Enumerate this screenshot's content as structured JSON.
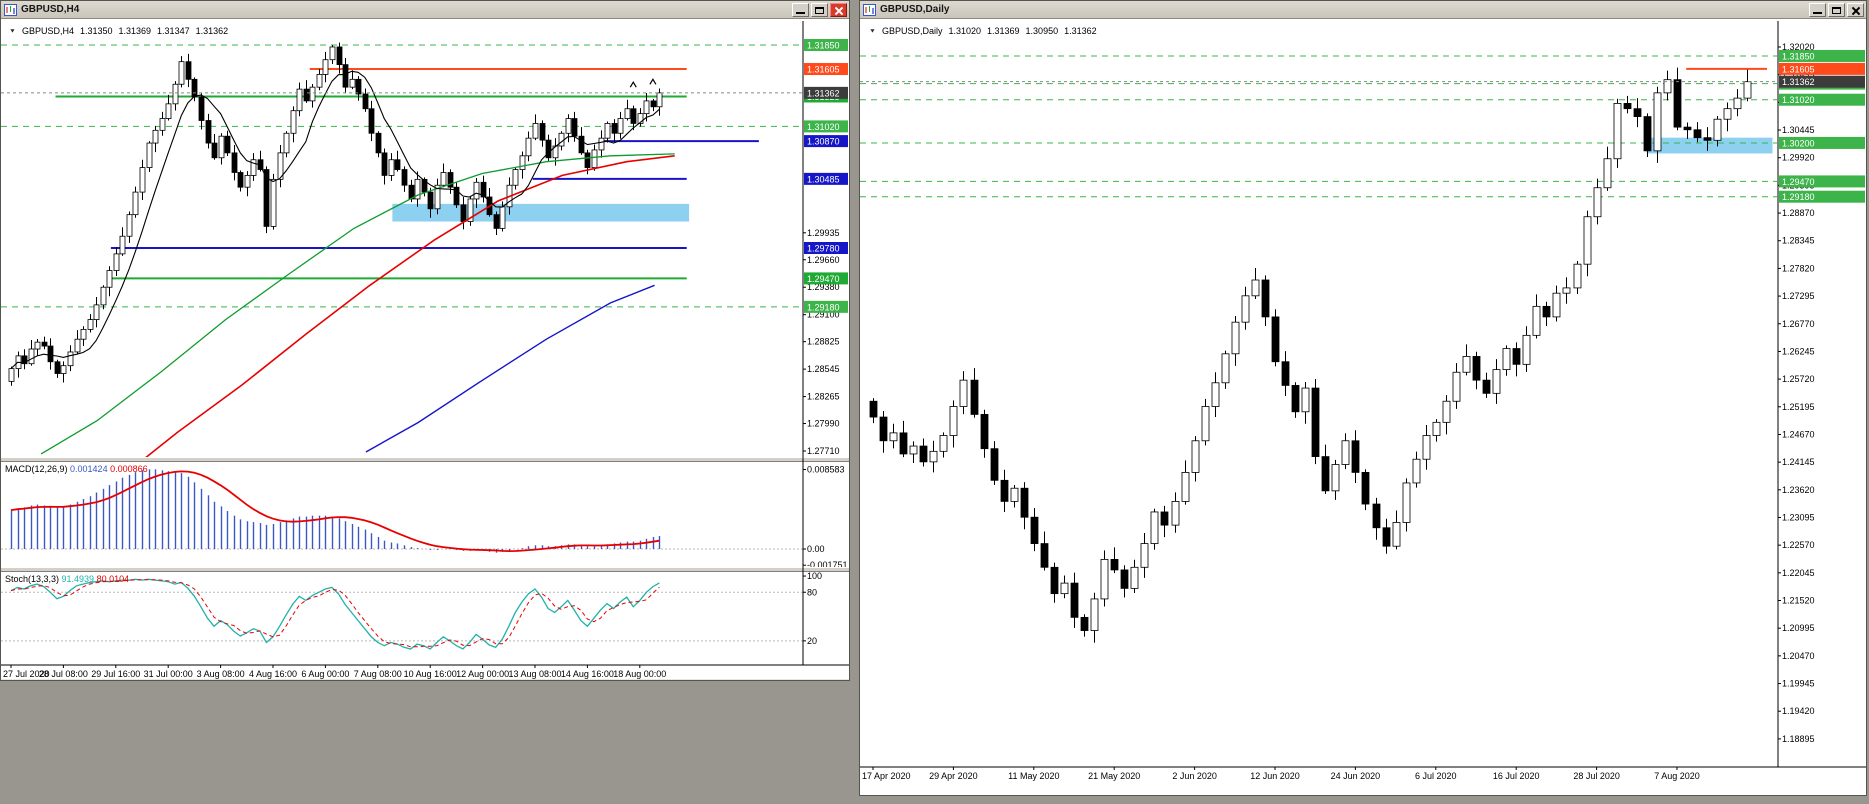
{
  "app": {
    "desktop_bg": "#98968f",
    "titlebar_bg": "#d4d0c8",
    "bull_color": "#ffffff",
    "bear_color": "#000000",
    "accent_green": "#1faa34",
    "accent_green_dashed": "#3cb44a",
    "accent_blue": "#1616c8",
    "accent_orange": "#ff4a1c",
    "zone_blue": "#8dd0f0",
    "current_price_box": "#3c3c3c"
  },
  "windows": {
    "left": {
      "title": "GBPUSD,H4",
      "icon": "candlestick-chart-icon",
      "controls": [
        "minimize-icon",
        "restore-icon",
        "close-icon"
      ],
      "header": {
        "symbol": "GBPUSD,H4",
        "open": "1.31350",
        "high": "1.31369",
        "low": "1.31347",
        "close": "1.31362"
      }
    },
    "right": {
      "title": "GBPUSD,Daily",
      "icon": "candlestick-chart-icon",
      "controls": [
        "minimize-icon",
        "restore-icon",
        "close-icon"
      ],
      "header": {
        "symbol": "GBPUSD,Daily",
        "open": "1.31020",
        "high": "1.31369",
        "low": "1.30950",
        "close": "1.31362"
      }
    }
  },
  "chart_data": [
    {
      "id": "gbpusd-h4",
      "type": "candlestick",
      "title": "GBPUSD,H4",
      "current_price": 1.31362,
      "label_every": 8,
      "y_axis_labels": [
        1.29935,
        1.2966,
        1.2938,
        1.291,
        1.28825,
        1.28545,
        1.28265,
        1.2799,
        1.2771
      ],
      "x_labels": [
        "27 Jul 2020",
        "28 Jul 08:00",
        "29 Jul 16:00",
        "31 Jul 00:00",
        "3 Aug 08:00",
        "4 Aug 16:00",
        "6 Aug 00:00",
        "7 Aug 08:00",
        "10 Aug 16:00",
        "12 Aug 00:00",
        "13 Aug 08:00",
        "14 Aug 16:00",
        "18 Aug 00:00"
      ],
      "levels": [
        {
          "price": 1.3185,
          "color": "#3cb44a",
          "dash": true,
          "x1": 0,
          "x2": 1,
          "w": 1
        },
        {
          "price": 1.31605,
          "color": "#ff4a1c",
          "dash": false,
          "x1": 0.385,
          "x2": 0.855,
          "w": 2
        },
        {
          "price": 1.31325,
          "color": "#1faa34",
          "dash": false,
          "x1": 0.068,
          "x2": 0.855,
          "w": 2
        },
        {
          "price": 1.3102,
          "color": "#3cb44a",
          "dash": true,
          "x1": 0,
          "x2": 1,
          "w": 1
        },
        {
          "price": 1.3087,
          "color": "#1616c8",
          "dash": false,
          "x1": 0.745,
          "x2": 0.945,
          "w": 2
        },
        {
          "price": 1.30485,
          "color": "#1616c8",
          "dash": false,
          "x1": 0.663,
          "x2": 0.855,
          "w": 2
        },
        {
          "price": 1.2978,
          "color": "#1616c8",
          "dash": false,
          "x1": 0.137,
          "x2": 0.855,
          "w": 2
        },
        {
          "price": 1.2947,
          "color": "#1faa34",
          "dash": false,
          "x1": 0.137,
          "x2": 0.855,
          "w": 2
        },
        {
          "price": 1.2918,
          "color": "#3cb44a",
          "dash": true,
          "x1": 0,
          "x2": 1,
          "w": 1
        }
      ],
      "zones": [
        {
          "top": 1.3023,
          "bottom": 1.3005,
          "x1": 0.488,
          "x2": 0.858,
          "color": "#8dd0f0"
        }
      ],
      "moving_averages": [
        {
          "name": "ma-green",
          "color": "#0f9c2e",
          "w": 1.3,
          "anchors": [
            [
              0.05,
              1.2768
            ],
            [
              0.12,
              1.2802
            ],
            [
              0.2,
              1.2852
            ],
            [
              0.28,
              1.2905
            ],
            [
              0.36,
              1.2952
            ],
            [
              0.44,
              1.2998
            ],
            [
              0.52,
              1.3032
            ],
            [
              0.6,
              1.3054
            ],
            [
              0.68,
              1.3066
            ],
            [
              0.76,
              1.3072
            ],
            [
              0.84,
              1.3074
            ]
          ]
        },
        {
          "name": "ma-red",
          "color": "#e80000",
          "w": 1.6,
          "anchors": [
            [
              0.14,
              1.2738
            ],
            [
              0.22,
              1.279
            ],
            [
              0.3,
              1.2838
            ],
            [
              0.38,
              1.289
            ],
            [
              0.46,
              1.294
            ],
            [
              0.54,
              1.2986
            ],
            [
              0.62,
              1.3026
            ],
            [
              0.7,
              1.3052
            ],
            [
              0.78,
              1.3066
            ],
            [
              0.84,
              1.3072
            ]
          ]
        },
        {
          "name": "ma-blue",
          "color": "#1414cc",
          "w": 1.4,
          "anchors": [
            [
              0.455,
              1.277
            ],
            [
              0.52,
              1.28
            ],
            [
              0.6,
              1.2843
            ],
            [
              0.68,
              1.2885
            ],
            [
              0.76,
              1.2922
            ],
            [
              0.815,
              1.294
            ]
          ]
        }
      ],
      "fast_ma": {
        "name": "ma-black",
        "color": "#000000",
        "period": 7
      },
      "markers": [
        {
          "index": 95,
          "price": 1.3145,
          "glyph": "arrow-up"
        },
        {
          "index": 98,
          "price": 1.3148,
          "glyph": "arrow-up"
        }
      ],
      "first_open": 1.2842,
      "closes": [
        1.2855,
        1.2868,
        1.286,
        1.2875,
        1.2882,
        1.2878,
        1.2862,
        1.285,
        1.2858,
        1.2872,
        1.2885,
        1.2895,
        1.2905,
        1.292,
        1.2938,
        1.2955,
        1.2972,
        1.299,
        1.3012,
        1.3035,
        1.306,
        1.3085,
        1.3098,
        1.311,
        1.3125,
        1.3145,
        1.3168,
        1.315,
        1.3132,
        1.3108,
        1.3085,
        1.307,
        1.3092,
        1.3075,
        1.3055,
        1.304,
        1.3052,
        1.3068,
        1.3058,
        1.3,
        1.3048,
        1.3075,
        1.3095,
        1.3118,
        1.314,
        1.3128,
        1.3142,
        1.3155,
        1.317,
        1.3183,
        1.3165,
        1.3142,
        1.315,
        1.3135,
        1.312,
        1.3095,
        1.3075,
        1.3052,
        1.3068,
        1.3058,
        1.3042,
        1.3028,
        1.3048,
        1.3035,
        1.3018,
        1.3042,
        1.3055,
        1.304,
        1.3022,
        1.3005,
        1.3028,
        1.3045,
        1.303,
        1.3012,
        1.2998,
        1.302,
        1.3042,
        1.3058,
        1.3072,
        1.309,
        1.3105,
        1.3088,
        1.307,
        1.3082,
        1.3095,
        1.311,
        1.3092,
        1.3075,
        1.306,
        1.3078,
        1.309,
        1.3105,
        1.3095,
        1.311,
        1.312,
        1.3105,
        1.3115,
        1.3128,
        1.3122,
        1.31362
      ]
    },
    {
      "id": "macd",
      "type": "bar",
      "label": "MACD(12,26,9)",
      "value1": "0.001424",
      "value2": "0.000866",
      "histogram_color": "#3a57c4",
      "signal_color": "#e80000",
      "axis": [
        {
          "t": "0.008583",
          "v": 0.008583
        },
        {
          "t": "0.00",
          "v": 0
        },
        {
          "t": "-0.001751",
          "v": -0.001751
        }
      ],
      "values": [
        0.0042,
        0.0044,
        0.0045,
        0.0047,
        0.0048,
        0.0047,
        0.0046,
        0.0045,
        0.0046,
        0.0048,
        0.0051,
        0.0054,
        0.0057,
        0.0061,
        0.0065,
        0.0069,
        0.0073,
        0.0077,
        0.008,
        0.0083,
        0.0085,
        0.0086,
        0.0086,
        0.0085,
        0.0084,
        0.0083,
        0.0082,
        0.0078,
        0.0072,
        0.0065,
        0.0058,
        0.0051,
        0.0046,
        0.0041,
        0.0036,
        0.0032,
        0.003,
        0.0029,
        0.0028,
        0.0026,
        0.0027,
        0.0029,
        0.0031,
        0.0033,
        0.0035,
        0.0035,
        0.0036,
        0.0036,
        0.0036,
        0.0035,
        0.0033,
        0.003,
        0.0027,
        0.0024,
        0.0021,
        0.0017,
        0.0013,
        0.0009,
        0.0007,
        0.0006,
        0.0004,
        0.0002,
        0.0001,
        0.0,
        -0.0001,
        -0.0001,
        0.0,
        0.0,
        -0.0001,
        -0.0002,
        -0.0002,
        -0.0001,
        -0.0002,
        -0.0003,
        -0.0004,
        -0.0003,
        -0.0002,
        0.0,
        0.0001,
        0.0003,
        0.0004,
        0.0004,
        0.0003,
        0.0003,
        0.0004,
        0.0005,
        0.0005,
        0.0004,
        0.0003,
        0.0003,
        0.0004,
        0.0005,
        0.0006,
        0.0007,
        0.0008,
        0.0008,
        0.0009,
        0.0011,
        0.0013,
        0.0014
      ]
    },
    {
      "id": "stochastic",
      "type": "line",
      "label": "Stoch(13,3,3)",
      "value1": "91.4939",
      "value2": "80.0104",
      "main_color": "#20b2aa",
      "signal_color": "#e80000",
      "guide_levels": [
        80,
        20
      ],
      "axis": [
        {
          "t": "100",
          "v": 100
        },
        {
          "t": "80",
          "v": 80
        },
        {
          "t": "20",
          "v": 20
        }
      ],
      "values": [
        82,
        86,
        84,
        88,
        90,
        87,
        80,
        72,
        75,
        82,
        88,
        90,
        92,
        93,
        94,
        93,
        94,
        95,
        95,
        96,
        95,
        96,
        95,
        94,
        93,
        90,
        92,
        85,
        75,
        62,
        48,
        38,
        45,
        40,
        32,
        26,
        30,
        35,
        32,
        18,
        25,
        38,
        52,
        65,
        75,
        70,
        76,
        80,
        84,
        86,
        78,
        65,
        55,
        45,
        35,
        25,
        18,
        14,
        18,
        16,
        12,
        10,
        16,
        14,
        10,
        18,
        25,
        20,
        14,
        10,
        18,
        28,
        22,
        15,
        12,
        22,
        38,
        55,
        68,
        78,
        84,
        74,
        60,
        55,
        62,
        70,
        58,
        45,
        38,
        48,
        58,
        66,
        60,
        68,
        74,
        62,
        70,
        80,
        87,
        91.5
      ]
    },
    {
      "id": "gbpusd-daily",
      "type": "candlestick",
      "title": "GBPUSD,Daily",
      "current_price": 1.31362,
      "label_every": 8,
      "y_axis_labels": [
        1.3202,
        1.31495,
        1.3097,
        1.30445,
        1.2992,
        1.29395,
        1.2887,
        1.28345,
        1.2782,
        1.27295,
        1.2677,
        1.26245,
        1.2572,
        1.25195,
        1.2467,
        1.24145,
        1.2362,
        1.23095,
        1.2257,
        1.22045,
        1.2152,
        1.20995,
        1.2047,
        1.19945,
        1.1942,
        1.18895
      ],
      "x_labels": [
        "17 Apr 2020",
        "29 Apr 2020",
        "11 May 2020",
        "21 May 2020",
        "2 Jun 2020",
        "12 Jun 2020",
        "24 Jun 2020",
        "6 Jul 2020",
        "16 Jul 2020",
        "28 Jul 2020",
        "7 Aug 2020"
      ],
      "levels": [
        {
          "price": 1.3185,
          "color": "#3cb44a",
          "dash": true,
          "x1": 0,
          "x2": 1,
          "w": 1
        },
        {
          "price": 1.31605,
          "color": "#ff4a1c",
          "dash": false,
          "x1": 0.9,
          "x2": 0.988,
          "w": 2
        },
        {
          "price": 1.31325,
          "color": "#3cb44a",
          "dash": true,
          "x1": 0,
          "x2": 1,
          "w": 1
        },
        {
          "price": 1.3102,
          "color": "#3cb44a",
          "dash": true,
          "x1": 0,
          "x2": 1,
          "w": 1
        },
        {
          "price": 1.302,
          "color": "#3cb44a",
          "dash": true,
          "x1": 0,
          "x2": 1,
          "w": 1
        },
        {
          "price": 1.2947,
          "color": "#3cb44a",
          "dash": true,
          "x1": 0,
          "x2": 1,
          "w": 1
        },
        {
          "price": 1.2918,
          "color": "#3cb44a",
          "dash": true,
          "x1": 0,
          "x2": 1,
          "w": 1
        }
      ],
      "zones": [
        {
          "top": 1.303,
          "bottom": 1.3,
          "x1": 0.857,
          "x2": 0.994,
          "color": "#8dd0f0"
        }
      ],
      "first_open": 1.253,
      "closes": [
        1.25,
        1.2455,
        1.247,
        1.243,
        1.2445,
        1.2415,
        1.2435,
        1.2465,
        1.252,
        1.257,
        1.2505,
        1.244,
        1.238,
        1.234,
        1.2365,
        1.231,
        1.226,
        1.2215,
        1.2165,
        1.2185,
        1.212,
        1.2095,
        1.2155,
        1.223,
        1.221,
        1.2175,
        1.2215,
        1.226,
        1.232,
        1.2295,
        1.234,
        1.2395,
        1.2455,
        1.252,
        1.2565,
        1.262,
        1.268,
        1.273,
        1.276,
        1.269,
        1.2605,
        1.256,
        1.251,
        1.2555,
        1.2425,
        1.236,
        1.241,
        1.2455,
        1.2395,
        1.2335,
        1.229,
        1.2255,
        1.23,
        1.2375,
        1.242,
        1.2465,
        1.249,
        1.253,
        1.2585,
        1.2615,
        1.257,
        1.2545,
        1.259,
        1.263,
        1.26,
        1.2655,
        1.271,
        1.269,
        1.2735,
        1.2745,
        1.279,
        1.288,
        1.2935,
        1.299,
        1.3095,
        1.3085,
        1.307,
        1.3005,
        1.3115,
        1.314,
        1.305,
        1.3045,
        1.303,
        1.3025,
        1.3065,
        1.3085,
        1.3105,
        1.31362
      ]
    }
  ]
}
